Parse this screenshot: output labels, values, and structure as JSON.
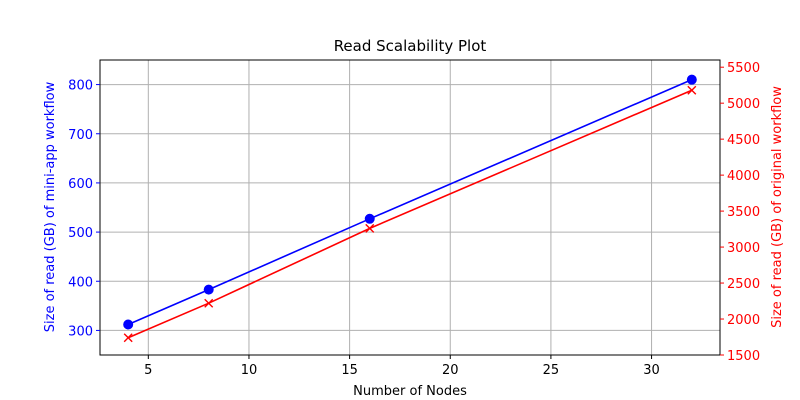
{
  "chart_data": {
    "type": "line",
    "title": "Read Scalability Plot",
    "xlabel": "Number of Nodes",
    "x": [
      4,
      8,
      16,
      32
    ],
    "xlim": [
      2.6,
      33.4
    ],
    "xticks": [
      5,
      10,
      15,
      20,
      25,
      30
    ],
    "grid": true,
    "series": [
      {
        "name": "Size of read (GB) of mini-app workflow",
        "axis": "left",
        "color": "#0000ff",
        "marker": "circle",
        "values": [
          312,
          383,
          527,
          810
        ]
      },
      {
        "name": "Size of read (GB) of original workflow",
        "axis": "right",
        "color": "#ff0000",
        "marker": "x",
        "values": [
          1740,
          2220,
          3260,
          5180
        ]
      }
    ],
    "y_left": {
      "label": "Size of read (GB) of mini-app workflow",
      "color": "#0000ff",
      "ylim": [
        250,
        850
      ],
      "ticks": [
        300,
        400,
        500,
        600,
        700,
        800
      ]
    },
    "y_right": {
      "label": "Size of read (GB) of original workflow",
      "color": "#ff0000",
      "ylim": [
        1500,
        5600
      ],
      "ticks": [
        1500,
        2000,
        2500,
        3000,
        3500,
        4000,
        4500,
        5000,
        5500
      ]
    }
  }
}
